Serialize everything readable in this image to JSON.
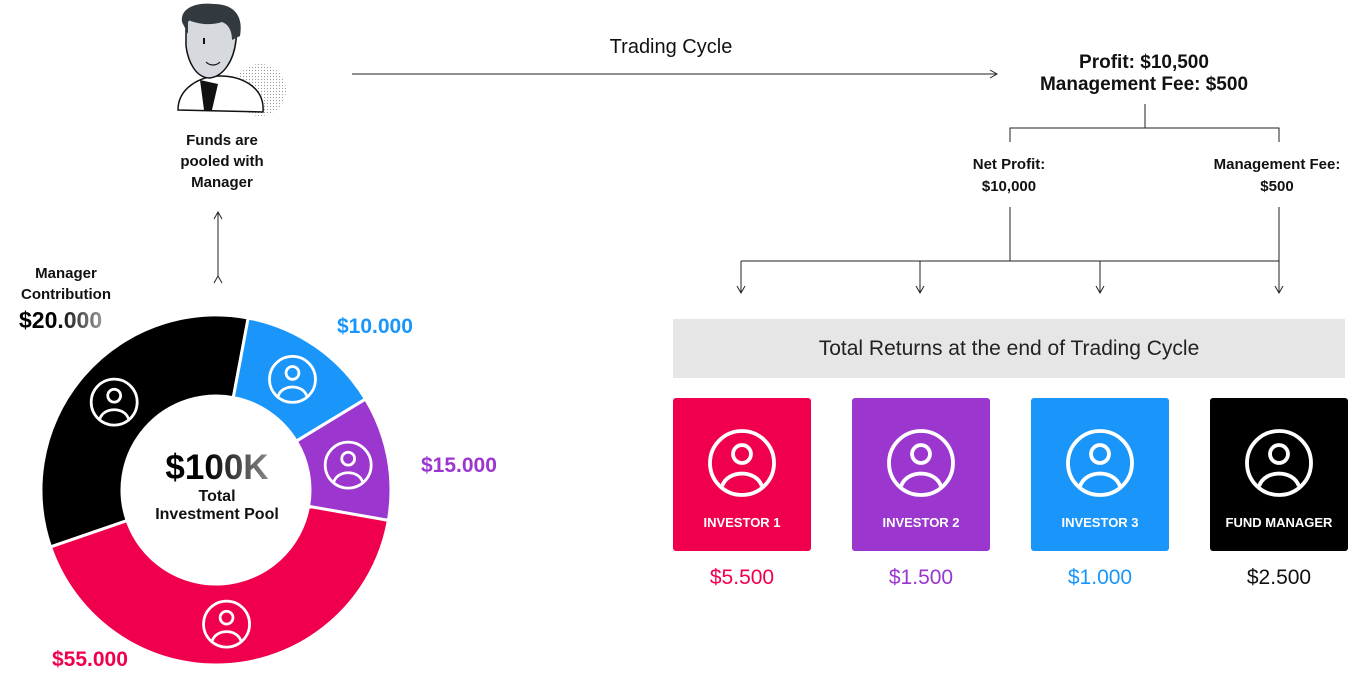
{
  "colors": {
    "investor1": "#f0004c",
    "investor2": "#9b36cf",
    "investor3": "#1a96fb",
    "manager": "#000000",
    "returns_bar": "#e6e6e6"
  },
  "manager_figure": {
    "icon": "manager-illustration",
    "caption_lines": [
      "Funds are",
      "pooled with",
      "Manager"
    ]
  },
  "trading_cycle": {
    "label": "Trading Cycle"
  },
  "profit": {
    "line1": "Profit: $10,500",
    "line2": "Management Fee: $500"
  },
  "split": {
    "net_profit": {
      "label": "Net Profit:",
      "value": "$10,000"
    },
    "management_fee": {
      "label": "Management Fee:",
      "value": "$500"
    }
  },
  "pool": {
    "total": "$100K",
    "caption_lines": [
      "Total",
      "Investment Pool"
    ],
    "manager_label_lines": [
      "Manager",
      "Contribution"
    ],
    "segments": [
      {
        "name": "Fund Manager",
        "value": "$20.000",
        "color": "#000000"
      },
      {
        "name": "Investor 3",
        "value": "$10.000",
        "color": "#1a96fb"
      },
      {
        "name": "Investor 2",
        "value": "$15.000",
        "color": "#9b36cf"
      },
      {
        "name": "Investor 1",
        "value": "$55.000",
        "color": "#f0004c"
      }
    ]
  },
  "returns": {
    "title": "Total Returns at the end of Trading Cycle",
    "cards": [
      {
        "label": "INVESTOR 1",
        "amount": "$5.500",
        "color": "#f0004c"
      },
      {
        "label": "INVESTOR 2",
        "amount": "$1.500",
        "color": "#9b36cf"
      },
      {
        "label": "INVESTOR 3",
        "amount": "$1.000",
        "color": "#1a96fb"
      },
      {
        "label": "FUND MANAGER",
        "amount": "$2.500",
        "color": "#000000"
      }
    ]
  }
}
